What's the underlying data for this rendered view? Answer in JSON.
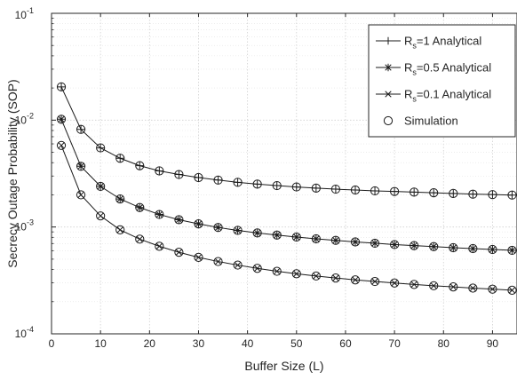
{
  "chart_data": {
    "type": "line",
    "title": "",
    "xlabel": "Buffer Size (L)",
    "ylabel": "Secrecy Outage Probability (SOP)",
    "xlim": [
      0,
      95
    ],
    "ylim": [
      0.0001,
      0.1
    ],
    "yscale": "log",
    "grid": true,
    "legend_position": "top-right",
    "x_ticks": [
      "0",
      "10",
      "20",
      "30",
      "40",
      "50",
      "60",
      "70",
      "80",
      "90"
    ],
    "y_ticks": [
      {
        "base": "10",
        "exp": "-4"
      },
      {
        "base": "10",
        "exp": "-3"
      },
      {
        "base": "10",
        "exp": "-2"
      },
      {
        "base": "10",
        "exp": "-1"
      }
    ],
    "x": [
      2,
      6,
      10,
      14,
      18,
      22,
      26,
      30,
      34,
      38,
      42,
      46,
      50,
      54,
      58,
      62,
      66,
      70,
      74,
      78,
      82,
      86,
      90,
      94
    ],
    "series": [
      {
        "label_main": "R",
        "label_sub": "s",
        "label_rest": "=1  Analytical",
        "marker": "plus",
        "values": [
          0.0205,
          0.0082,
          0.0055,
          0.0044,
          0.00375,
          0.00335,
          0.0031,
          0.0029,
          0.00275,
          0.00262,
          0.00252,
          0.00244,
          0.00237,
          0.00231,
          0.00226,
          0.00222,
          0.00218,
          0.00215,
          0.00212,
          0.00209,
          0.00206,
          0.00203,
          0.00201,
          0.00199
        ]
      },
      {
        "label_main": "R",
        "label_sub": "s",
        "label_rest": "=0.5 Analytical",
        "marker": "star",
        "values": [
          0.0102,
          0.0037,
          0.0024,
          0.00183,
          0.00152,
          0.00131,
          0.00117,
          0.00107,
          0.00099,
          0.00093,
          0.00088,
          0.00084,
          0.000805,
          0.000775,
          0.00075,
          0.000725,
          0.000705,
          0.000685,
          0.00067,
          0.000655,
          0.00064,
          0.000628,
          0.000616,
          0.000605
        ]
      },
      {
        "label_main": "R",
        "label_sub": "s",
        "label_rest": "=0.1 Analytical",
        "marker": "x",
        "values": [
          0.0058,
          0.002,
          0.00127,
          0.00094,
          0.00077,
          0.00066,
          0.00058,
          0.00052,
          0.000475,
          0.00044,
          0.00041,
          0.000385,
          0.000365,
          0.000348,
          0.000333,
          0.00032,
          0.000309,
          0.000299,
          0.00029,
          0.000282,
          0.000275,
          0.000268,
          0.000262,
          0.000256
        ]
      }
    ],
    "simulation_label": "Simulation",
    "colors": {
      "line": "#1a1a1a",
      "grid": "#d0d0d0",
      "axis": "#262626"
    }
  }
}
